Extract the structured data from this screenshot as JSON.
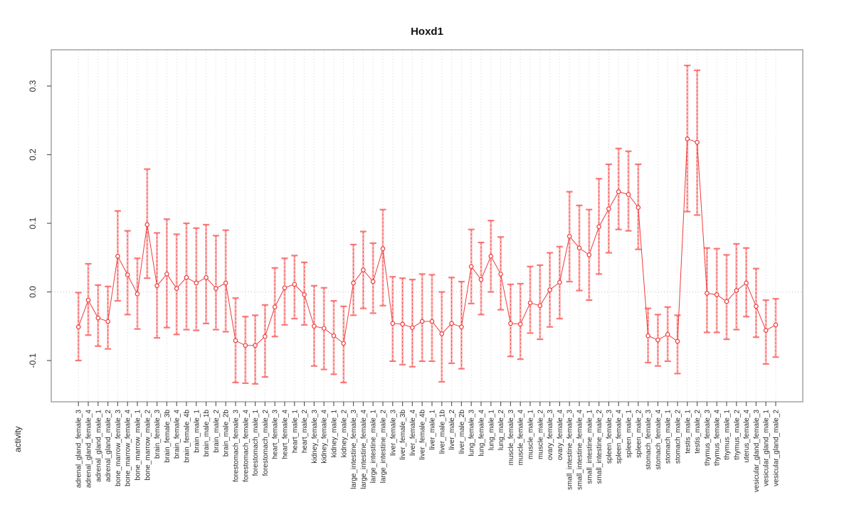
{
  "chart_data": {
    "type": "scatter",
    "title": "Hoxd1",
    "ylabel": "activity",
    "xlabel": "",
    "legend": "none",
    "grid": "dotted vertical gridline per category; dotted horizontal line at y=0",
    "ylim": [
      -0.155,
      0.353
    ],
    "yticks": [
      -0.1,
      0.0,
      0.1,
      0.2,
      0.3
    ],
    "ytick_labels": [
      "-0.1",
      "0.0",
      "0.1",
      "0.2",
      "0.3"
    ],
    "series_color": "#ef3b3b",
    "error_bar_color": "#fb7a7a",
    "categories": [
      "adrenal_gland_female_3",
      "adrenal_gland_female_4",
      "adrenal_gland_male_1",
      "adrenal_gland_male_2",
      "bone_marrow_female_3",
      "bone_marrow_female_4",
      "bone_marrow_male_1",
      "bone_marrow_male_2",
      "brain_female_3",
      "brain_female_3b",
      "brain_female_4",
      "brain_female_4b",
      "brain_male_1",
      "brain_male_1b",
      "brain_male_2",
      "brain_male_2b",
      "forestomach_female_3",
      "forestomach_female_4",
      "forestomach_male_1",
      "forestomach_male_2",
      "heart_female_3",
      "heart_female_4",
      "heart_male_1",
      "heart_male_2",
      "kidney_female_3",
      "kidney_female_4",
      "kidney_male_1",
      "kidney_male_2",
      "large_intestine_female_3",
      "large_intestine_female_4",
      "large_intestine_male_1",
      "large_intestine_male_2",
      "liver_female_3",
      "liver_female_3b",
      "liver_female_4",
      "liver_female_4b",
      "liver_male_1",
      "liver_male_1b",
      "liver_male_2",
      "liver_male_2b",
      "lung_female_3",
      "lung_female_4",
      "lung_male_1",
      "lung_male_2",
      "muscle_female_3",
      "muscle_female_4",
      "muscle_male_1",
      "muscle_male_2",
      "ovary_female_3",
      "ovary_female_4",
      "small_intestine_female_3",
      "small_intestine_female_4",
      "small_intestine_male_1",
      "small_intestine_male_2",
      "spleen_female_3",
      "spleen_female_4",
      "spleen_male_1",
      "spleen_male_2",
      "stomach_female_3",
      "stomach_female_4",
      "stomach_male_1",
      "stomach_male_2",
      "testis_male_1",
      "testis_male_2",
      "thymus_female_3",
      "thymus_female_4",
      "thymus_male_1",
      "thymus_male_2",
      "uterus_female_4",
      "vesicular_gland_female_3",
      "vesicular_gland_male_1",
      "vesicular_gland_male_2"
    ],
    "values": [
      -0.051,
      -0.012,
      -0.038,
      -0.043,
      0.052,
      0.025,
      -0.003,
      0.098,
      0.009,
      0.026,
      0.005,
      0.021,
      0.013,
      0.021,
      0.005,
      0.013,
      -0.071,
      -0.078,
      -0.078,
      -0.065,
      -0.022,
      0.006,
      0.011,
      -0.004,
      -0.05,
      -0.053,
      -0.064,
      -0.075,
      0.013,
      0.032,
      0.015,
      0.063,
      -0.046,
      -0.047,
      -0.052,
      -0.043,
      -0.043,
      -0.061,
      -0.046,
      -0.051,
      0.037,
      0.018,
      0.052,
      0.026,
      -0.046,
      -0.047,
      -0.016,
      -0.02,
      0.003,
      0.014,
      0.081,
      0.064,
      0.054,
      0.095,
      0.121,
      0.146,
      0.142,
      0.123,
      -0.064,
      -0.07,
      -0.062,
      -0.072,
      0.223,
      0.218,
      -0.002,
      -0.004,
      -0.014,
      0.002,
      0.013,
      -0.021,
      -0.056,
      -0.048
    ],
    "error_high": [
      -0.001,
      0.041,
      0.01,
      0.008,
      0.118,
      0.089,
      0.049,
      0.179,
      0.086,
      0.106,
      0.084,
      0.1,
      0.093,
      0.098,
      0.082,
      0.09,
      -0.009,
      -0.036,
      -0.034,
      -0.019,
      0.035,
      0.049,
      0.053,
      0.043,
      0.009,
      0.006,
      -0.013,
      -0.021,
      0.069,
      0.088,
      0.071,
      0.12,
      0.022,
      0.02,
      0.018,
      0.026,
      0.025,
      0.0,
      0.021,
      0.015,
      0.091,
      0.072,
      0.104,
      0.08,
      0.011,
      0.012,
      0.037,
      0.039,
      0.057,
      0.066,
      0.146,
      0.126,
      0.12,
      0.165,
      0.186,
      0.209,
      0.205,
      0.186,
      -0.024,
      -0.033,
      -0.022,
      -0.034,
      0.33,
      0.323,
      0.064,
      0.063,
      0.054,
      0.07,
      0.064,
      0.034,
      -0.012,
      -0.01
    ],
    "error_low": [
      -0.1,
      -0.063,
      -0.079,
      -0.083,
      -0.013,
      -0.033,
      -0.054,
      0.02,
      -0.067,
      -0.052,
      -0.062,
      -0.055,
      -0.056,
      -0.046,
      -0.055,
      -0.058,
      -0.132,
      -0.133,
      -0.134,
      -0.124,
      -0.065,
      -0.048,
      -0.039,
      -0.048,
      -0.108,
      -0.113,
      -0.12,
      -0.132,
      -0.034,
      -0.024,
      -0.031,
      -0.02,
      -0.101,
      -0.106,
      -0.109,
      -0.101,
      -0.101,
      -0.131,
      -0.104,
      -0.112,
      -0.017,
      -0.033,
      0.0,
      -0.026,
      -0.094,
      -0.098,
      -0.06,
      -0.069,
      -0.051,
      -0.039,
      0.015,
      0.002,
      -0.012,
      0.026,
      0.057,
      0.091,
      0.089,
      0.062,
      -0.103,
      -0.108,
      -0.101,
      -0.119,
      0.117,
      0.112,
      -0.059,
      -0.059,
      -0.069,
      -0.055,
      -0.036,
      -0.066,
      -0.105,
      -0.095
    ]
  }
}
